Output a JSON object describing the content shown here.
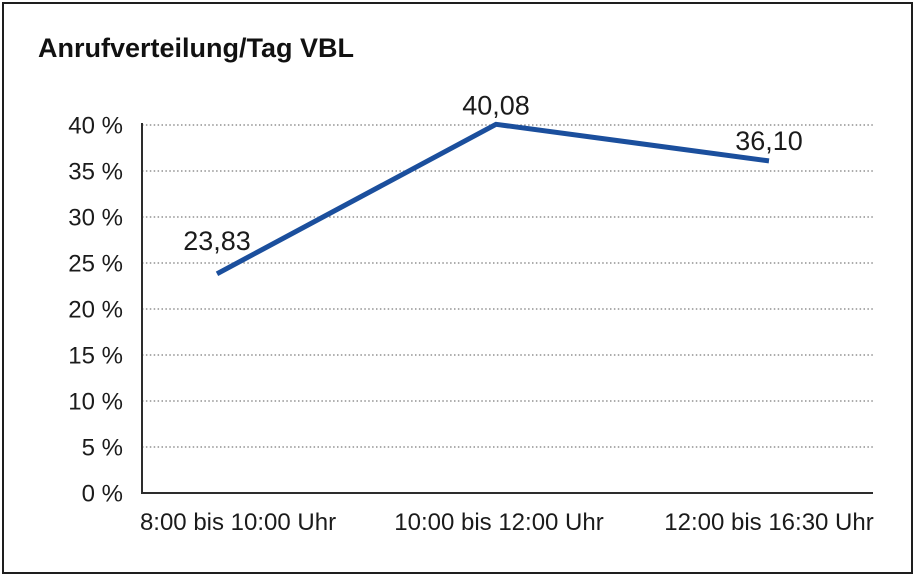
{
  "chart_data": {
    "type": "line",
    "title": "Anrufverteilung/Tag VBL",
    "categories": [
      "8:00 bis 10:00 Uhr",
      "10:00 bis 12:00 Uhr",
      "12:00 bis 16:30 Uhr"
    ],
    "values": [
      23.83,
      40.08,
      36.1
    ],
    "value_labels": [
      "23,83",
      "40,08",
      "36,10"
    ],
    "unit": "%",
    "xlabel": "",
    "ylabel": "",
    "ylim": [
      0,
      40
    ],
    "y_tick_step": 5,
    "y_ticks": [
      {
        "value": 0,
        "label": "0 %"
      },
      {
        "value": 5,
        "label": "5 %"
      },
      {
        "value": 10,
        "label": "10 %"
      },
      {
        "value": 15,
        "label": "15 %"
      },
      {
        "value": 20,
        "label": "20 %"
      },
      {
        "value": 25,
        "label": "25 %"
      },
      {
        "value": 30,
        "label": "30 %"
      },
      {
        "value": 35,
        "label": "35 %"
      },
      {
        "value": 40,
        "label": "40 %"
      }
    ],
    "grid": "horizontal-dotted",
    "legend": "none",
    "line_color": "#1b4f9d",
    "axis_color": "#2d2d2d",
    "grid_color": "#5a5a5a",
    "text_color": "#1b1b1b",
    "frame_color": "#1e1e1e",
    "background_color": "#ffffff"
  }
}
